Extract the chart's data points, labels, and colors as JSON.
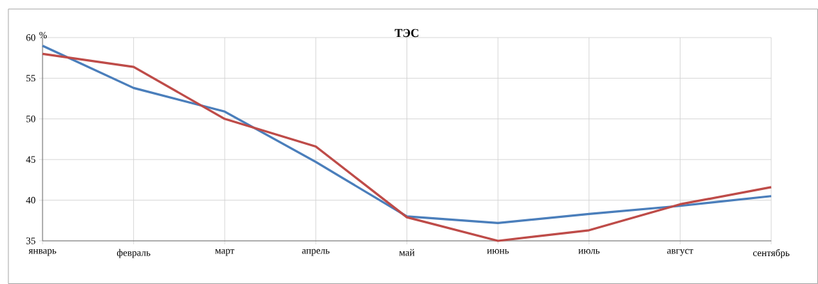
{
  "chart_data": {
    "type": "line",
    "title": "ТЭС",
    "ylabel": "%",
    "categories": [
      "январь",
      "февраль",
      "март",
      "апрель",
      "май",
      "июнь",
      "июль",
      "август",
      "сентябрь"
    ],
    "series": [
      {
        "color": "#4a7ebb",
        "values": [
          59.0,
          53.8,
          50.9,
          44.7,
          38.0,
          37.2,
          38.3,
          39.3,
          40.5
        ]
      },
      {
        "color": "#be4b48",
        "values": [
          58.0,
          56.4,
          50.0,
          46.6,
          37.9,
          35.0,
          36.3,
          39.5,
          41.6
        ]
      }
    ],
    "ylim": [
      35,
      60
    ],
    "yticks": [
      35,
      40,
      45,
      50,
      55,
      60
    ],
    "grid": true
  }
}
